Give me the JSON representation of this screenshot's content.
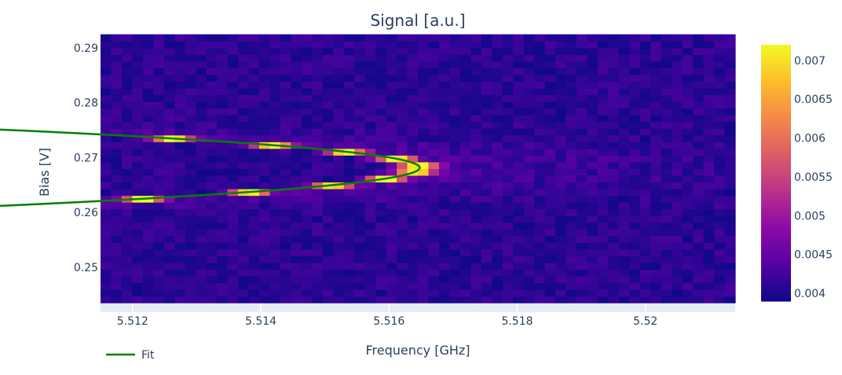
{
  "chart_data": {
    "type": "heatmap",
    "title": "Signal [a.u.]",
    "xlabel": "Frequency [GHz]",
    "ylabel": "Bias [V]",
    "xlim": [
      5.5115,
      5.5214
    ],
    "ylim": [
      0.2418,
      0.2923
    ],
    "x_ticks": [
      5.512,
      5.514,
      5.516,
      5.518,
      5.52
    ],
    "x_tick_labels": [
      "5.512",
      "5.514",
      "5.516",
      "5.518",
      "5.52"
    ],
    "y_ticks": [
      0.25,
      0.26,
      0.27,
      0.28,
      0.29
    ],
    "y_tick_labels": [
      "0.25",
      "0.26",
      "0.27",
      "0.28",
      "0.29"
    ],
    "heatmap": {
      "x_range": [
        5.5115,
        5.5214
      ],
      "y_range": [
        0.2435,
        0.2925
      ],
      "nx": 60,
      "ny": 40,
      "background_level": 0.0041,
      "peak_level": 0.0072,
      "ridge": {
        "vertex_frequency": 5.51648,
        "vertex_bias": 0.26815,
        "curvature": 0.0074,
        "width": 0.00022
      },
      "colorscale": "Plasma",
      "zlim": [
        0.0039,
        0.0072
      ]
    },
    "colorbar": {
      "ticks": [
        0.004,
        0.0045,
        0.005,
        0.0055,
        0.006,
        0.0065,
        0.007
      ],
      "tick_labels": [
        "0.004",
        "0.0045",
        "0.005",
        "0.0055",
        "0.006",
        "0.0065",
        "0.007"
      ]
    },
    "series": [
      {
        "name": "Fit",
        "type": "line",
        "color": "#008000",
        "model": "parabola",
        "vertex_frequency": 5.51648,
        "vertex_bias": 0.26815,
        "curvature": 0.0074,
        "bias_range": [
          0.2482,
          0.2885
        ]
      }
    ],
    "legend": {
      "placement": "bottom-left",
      "entries": [
        "Fit"
      ]
    },
    "grid": true
  }
}
